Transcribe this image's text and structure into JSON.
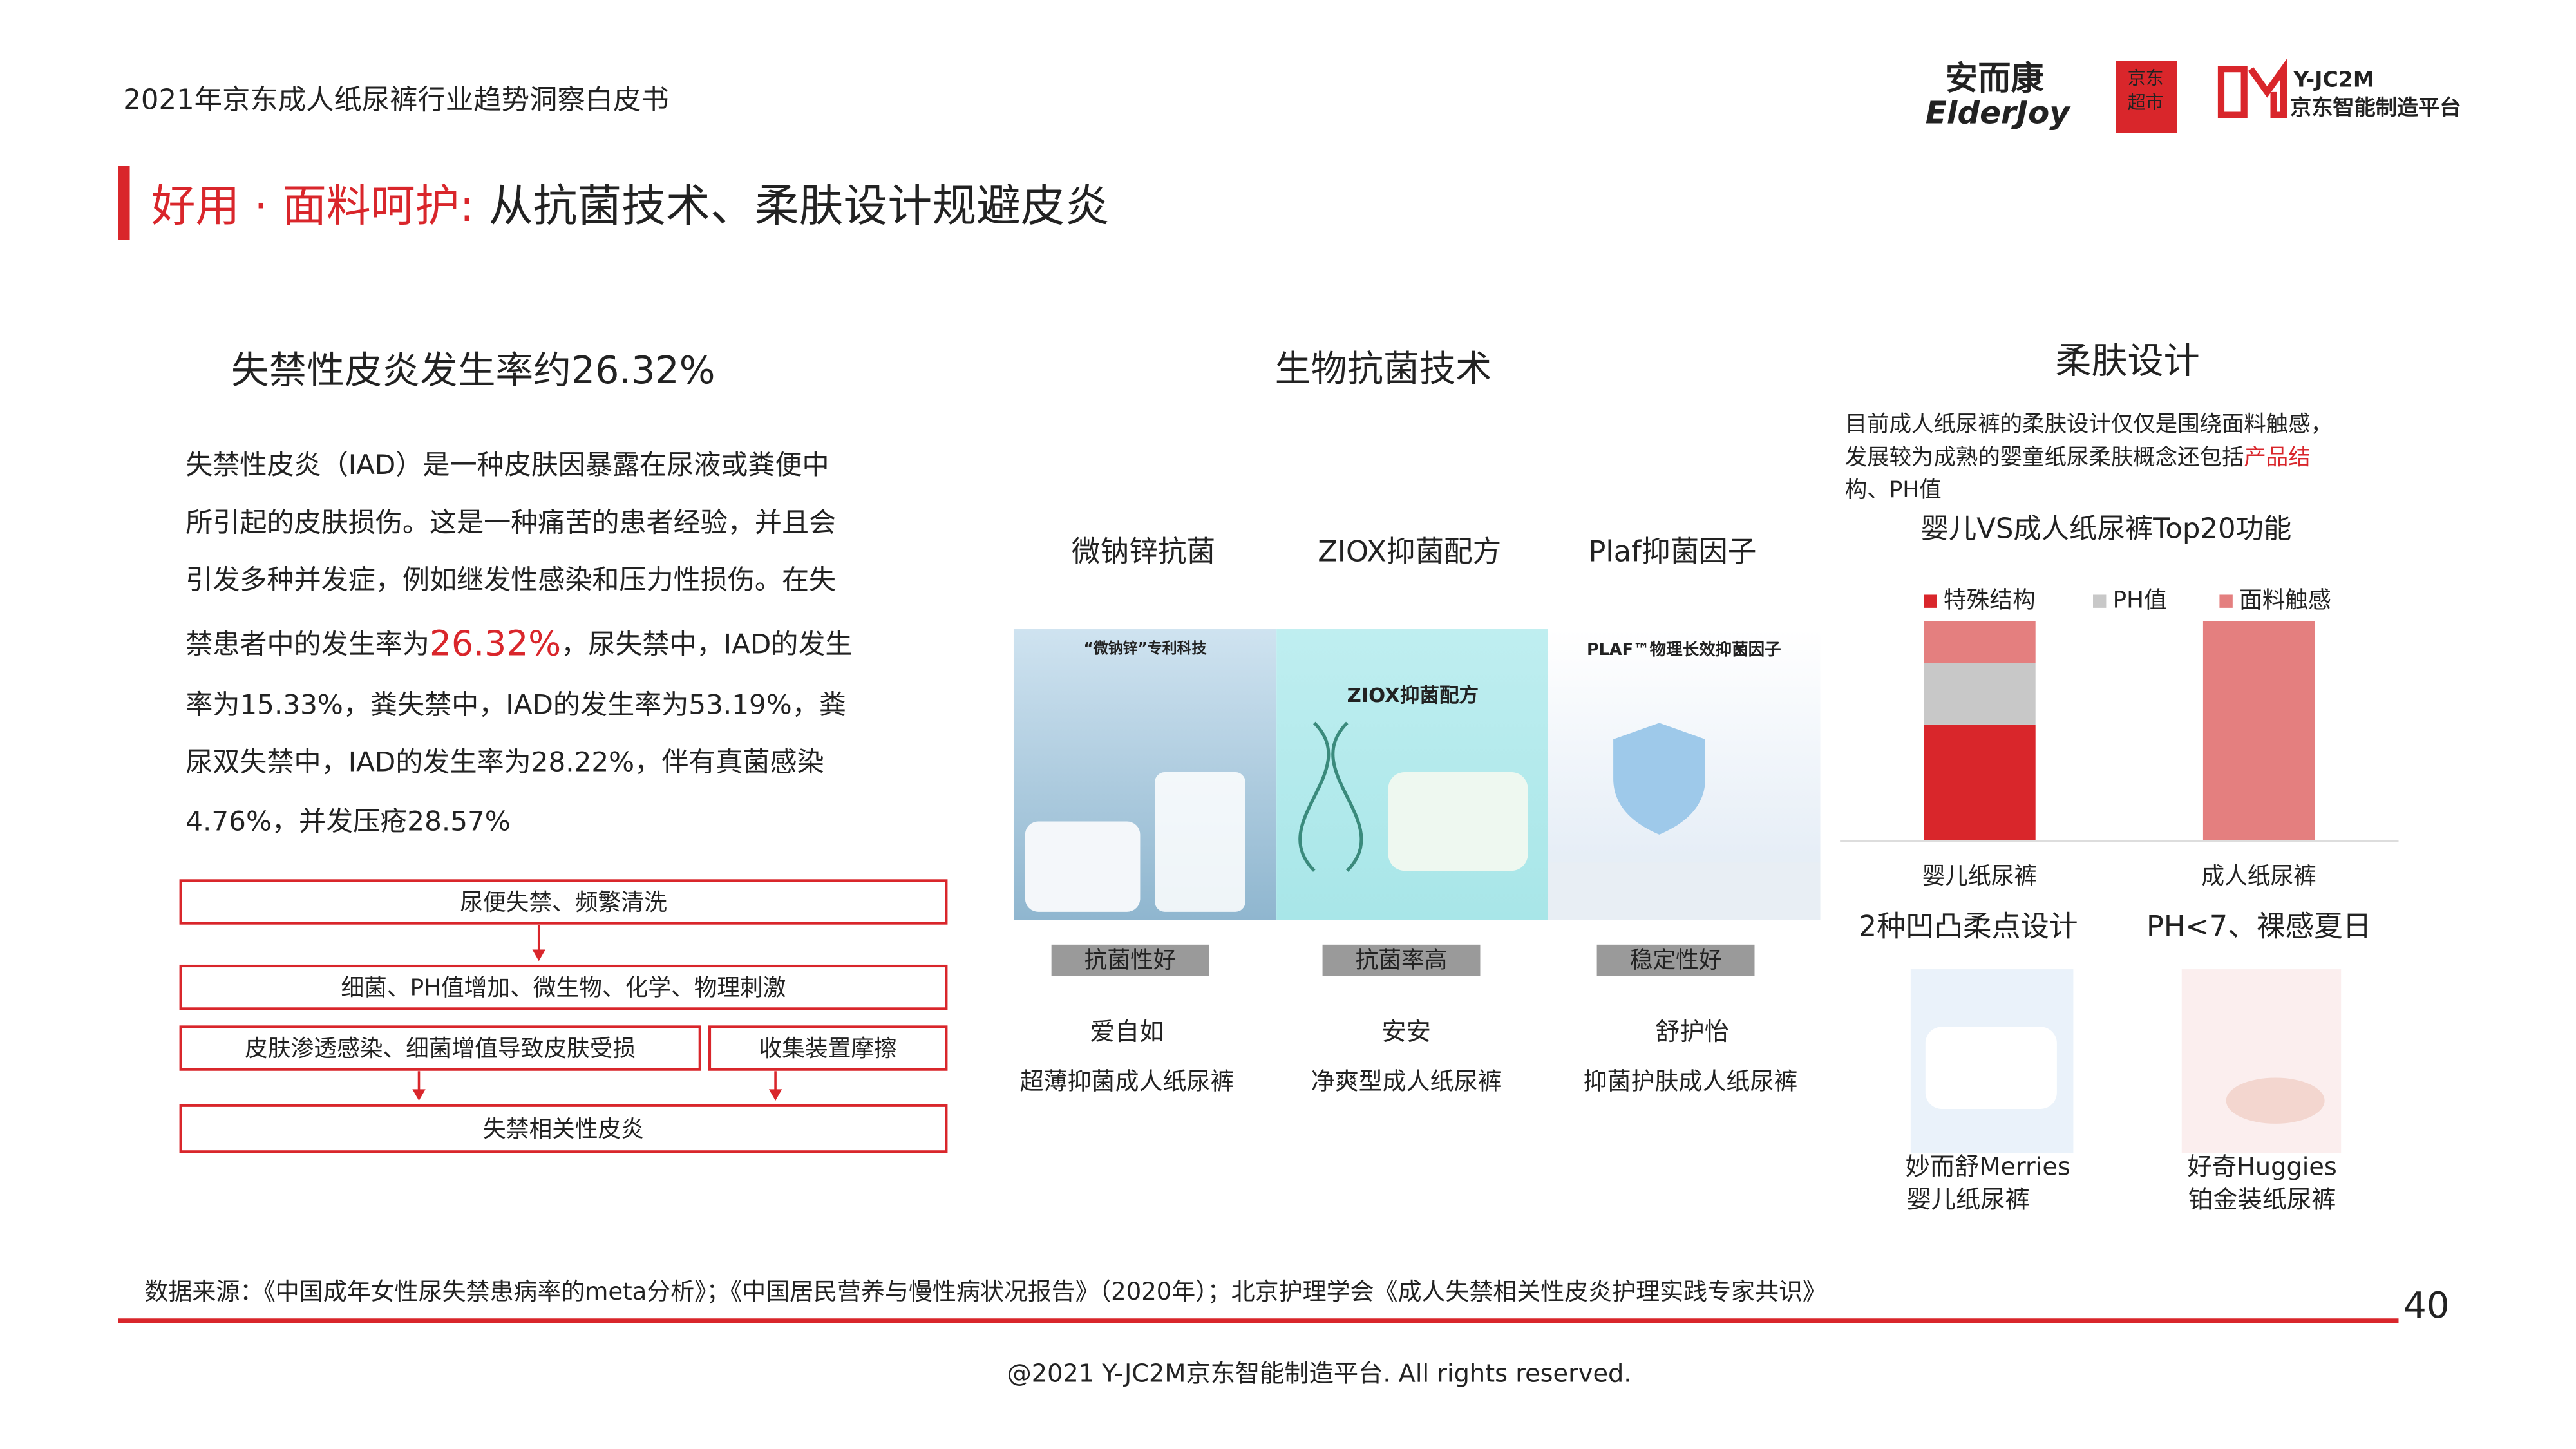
{
  "header": {
    "title": "2021年京东成人纸尿裤行业趋势洞察白皮书",
    "logo_cn": "安而康",
    "logo_en": "ElderJoy",
    "jd_logo": [
      "京东",
      "超市"
    ],
    "platform_logo": "Y-JC2M",
    "platform_name": "京东智能制造平台"
  },
  "section_title": {
    "highlight": "好用 · 面料呵护:",
    "rest": " 从抗菌技术、柔肤设计规避皮炎"
  },
  "left": {
    "heading": "失禁性皮炎发生率约26.32%",
    "lines": [
      "失禁性皮炎（IAD）是一种皮肤因暴露在尿液或粪便中",
      "所引起的皮肤损伤。这是一种痛苦的患者经验，并且会",
      "引发多种并发症，例如继发性感染和压力性损伤。在失"
    ],
    "line4": {
      "before": "禁患者中的发生率为",
      "highlight": "26.32%",
      "after": "，尿失禁中，IAD的发生"
    },
    "lines_after": [
      "率为15.33%，粪失禁中，IAD的发生率为53.19%，粪",
      "尿双失禁中，IAD的发生率为28.22%，伴有真菌感染",
      "4.76%，并发压疮28.57%"
    ],
    "flow": [
      "尿便失禁、频繁清洗",
      "细菌、PH值增加、微生物、化学、物理刺激",
      "皮肤渗透感染、细菌增值导致皮肤受损",
      "收集装置摩擦",
      "失禁相关性皮炎"
    ]
  },
  "middle": {
    "heading": "生物抗菌技术",
    "products": [
      {
        "feature": "微钠锌抗菌",
        "image_text": "“微钠锌”专利科技",
        "tag": "抗菌性好",
        "brand": "爱自如",
        "product": "超薄抑菌成人纸尿裤"
      },
      {
        "feature": "ZIOX抑菌配方",
        "image_text": "ZIOX抑菌配方",
        "tag": "抗菌率高",
        "brand": "安安",
        "product": "净爽型成人纸尿裤"
      },
      {
        "feature": "Plaf抑菌因子",
        "image_text": "PLAF™物理长效抑菌因子",
        "tag": "稳定性好",
        "brand": "舒护怡",
        "product": "抑菌护肤成人纸尿裤"
      }
    ]
  },
  "right": {
    "heading": "柔肤设计",
    "desc": [
      "目前成人纸尿裤的柔肤设计仅仅是围绕面料触感，",
      "发展较为成熟的婴童纸尿柔肤概念还包括"
    ],
    "desc_highlight": [
      "产品结",
      "构、PH值"
    ],
    "features": [
      {
        "title": "2种凹凸柔点设计",
        "brand": "妙而舒Merries",
        "product": "婴儿纸尿裤"
      },
      {
        "title": "PH<7、裸感夏日",
        "brand": "好奇Huggies",
        "product": "铂金装纸尿裤"
      }
    ]
  },
  "chart_data": {
    "type": "bar",
    "stacked": true,
    "title": "婴儿VS成人纸尿裤Top20功能",
    "categories": [
      "婴儿纸尿裤",
      "成人纸尿裤"
    ],
    "series": [
      {
        "name": "特殊结构",
        "color": "#d9262b",
        "values": [
          53,
          0
        ]
      },
      {
        "name": "PH值",
        "color": "#c8c8c8",
        "values": [
          28,
          0
        ]
      },
      {
        "name": "面料触感",
        "color": "#e47f7f",
        "values": [
          19,
          100
        ]
      }
    ],
    "ylim": [
      0,
      100
    ]
  },
  "footer": {
    "source": "数据来源：《中国成年女性尿失禁患病率的meta分析》；《中国居民营养与慢性病状况报告》（2020年）；北京护理学会《成人失禁相关性皮炎护理实践专家共识》",
    "page": "40",
    "copyright": "@2021 Y-JC2M京东智能制造平台. All rights reserved."
  }
}
